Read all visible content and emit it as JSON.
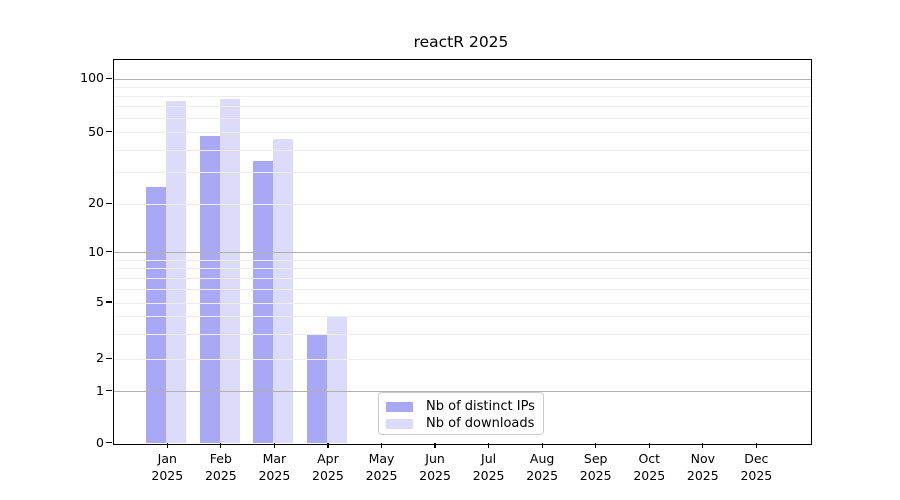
{
  "chart_data": {
    "type": "bar",
    "title": "reactR 2025",
    "categories": [
      "Jan",
      "Feb",
      "Mar",
      "Apr",
      "May",
      "Jun",
      "Jul",
      "Aug",
      "Sep",
      "Oct",
      "Nov",
      "Dec"
    ],
    "year_suffix": "2025",
    "series": [
      {
        "name": "Nb of distinct IPs",
        "color": "#a8a8f5",
        "values": [
          25,
          48,
          35,
          3,
          0,
          0,
          0,
          0,
          0,
          0,
          0,
          0
        ]
      },
      {
        "name": "Nb of downloads",
        "color": "#dcdcfa",
        "values": [
          75,
          77,
          46,
          4,
          0,
          0,
          0,
          0,
          0,
          0,
          0,
          0
        ]
      }
    ],
    "yticks": [
      "0",
      "1",
      "2",
      "5",
      "10",
      "20",
      "50",
      "100"
    ],
    "ytick_values": [
      0,
      1,
      2,
      5,
      10,
      20,
      50,
      100
    ],
    "scale": "symlog",
    "ylim": [
      0,
      130
    ],
    "grid": true,
    "legend_position": "inside plot, lower middle-left",
    "colors": {
      "major_grid": "#b0b0b0",
      "minor_grid": "#ededed",
      "axis": "#000000",
      "background": "#ffffff"
    }
  }
}
